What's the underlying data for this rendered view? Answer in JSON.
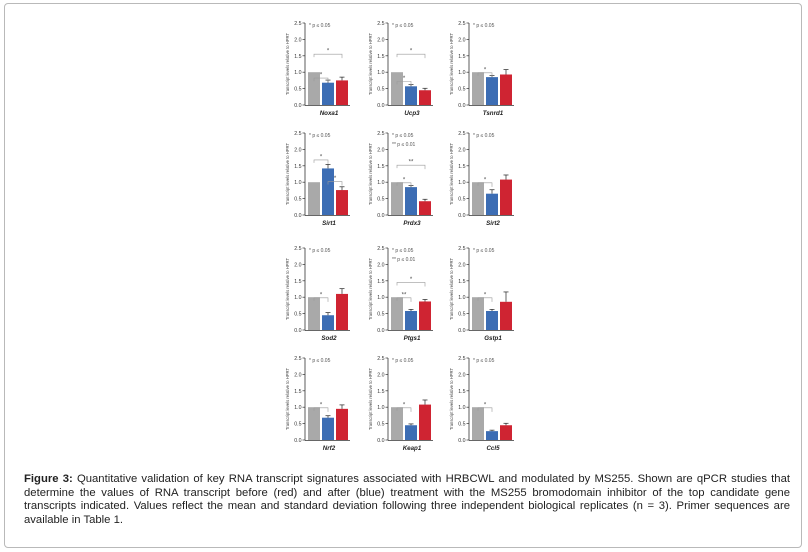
{
  "colors": {
    "grey": "#a9a9a9",
    "blue": "#3c6db4",
    "red": "#cf2432",
    "axis": "#333333",
    "sig": "#9a9a9a"
  },
  "y_tick_labels": [
    "0.0",
    "0.5",
    "1.0",
    "1.5",
    "2.0",
    "2.5"
  ],
  "ylabel": "Transcript levels relative to HPRT",
  "legend_text": {
    "p05": "* p ≤ 0.05",
    "p01": "** p ≤ 0.01"
  },
  "caption": {
    "label": "Figure 3:",
    "text": " Quantitative validation of key RNA transcript signatures associated with HRBCWL and modulated by MS255. Shown are qPCR studies that determine the values of RNA transcript before (red) and after (blue) treatment with the MS255 bromodomain inhibitor of the top candidate gene transcripts indicated. Values reflect the mean and standard deviation following three independent biological replicates (n = 3). Primer sequences are available in Table 1."
  },
  "chart_data": [
    {
      "type": "bar",
      "xlabel": "Noxa1",
      "ylim": [
        0,
        2.5
      ],
      "values": [
        1.0,
        0.68,
        0.75
      ],
      "errors": [
        0,
        0.08,
        0.1
      ],
      "legend": [
        "p05"
      ],
      "sig": [
        {
          "a": 0,
          "b": 1,
          "level": 0.82,
          "label": "*"
        },
        {
          "a": 0,
          "b": 2,
          "level": 1.55,
          "label": "*"
        }
      ]
    },
    {
      "type": "bar",
      "xlabel": "Ucp3",
      "ylim": [
        0,
        2.5
      ],
      "values": [
        1.0,
        0.57,
        0.45
      ],
      "errors": [
        0,
        0.05,
        0.06
      ],
      "legend": [
        "p05"
      ],
      "sig": [
        {
          "a": 0,
          "b": 1,
          "level": 0.72,
          "label": "*"
        },
        {
          "a": 0,
          "b": 2,
          "level": 1.55,
          "label": "*"
        }
      ]
    },
    {
      "type": "bar",
      "xlabel": "Tsnrd1",
      "ylim": [
        0,
        2.5
      ],
      "values": [
        1.0,
        0.85,
        0.93
      ],
      "errors": [
        0,
        0.05,
        0.15
      ],
      "legend": [
        "p05"
      ],
      "sig": [
        {
          "a": 0,
          "b": 1,
          "level": 0.98,
          "label": "*"
        }
      ]
    },
    {
      "type": "bar",
      "xlabel": "Sirt1",
      "ylim": [
        0,
        2.5
      ],
      "values": [
        1.0,
        1.42,
        0.76
      ],
      "errors": [
        0,
        0.12,
        0.1
      ],
      "legend": [
        "p05"
      ],
      "sig": [
        {
          "a": 0,
          "b": 1,
          "level": 1.68,
          "label": "*"
        },
        {
          "a": 1,
          "b": 2,
          "level": 1.02,
          "label": "*"
        }
      ]
    },
    {
      "type": "bar",
      "xlabel": "Prdx3",
      "ylim": [
        0,
        2.5
      ],
      "values": [
        1.0,
        0.85,
        0.42
      ],
      "errors": [
        0,
        0.05,
        0.06
      ],
      "legend": [
        "p05",
        "p01"
      ],
      "sig": [
        {
          "a": 0,
          "b": 1,
          "level": 0.98,
          "label": "*"
        },
        {
          "a": 0,
          "b": 2,
          "level": 1.52,
          "label": "**"
        }
      ]
    },
    {
      "type": "bar",
      "xlabel": "Sirt2",
      "ylim": [
        0,
        2.5
      ],
      "values": [
        1.0,
        0.65,
        1.08
      ],
      "errors": [
        0,
        0.12,
        0.14
      ],
      "legend": [
        "p05"
      ],
      "sig": [
        {
          "a": 0,
          "b": 1,
          "level": 0.98,
          "label": "*"
        }
      ]
    },
    {
      "type": "bar",
      "xlabel": "Sod2",
      "ylim": [
        0,
        2.5
      ],
      "values": [
        1.0,
        0.45,
        1.1
      ],
      "errors": [
        0,
        0.08,
        0.16
      ],
      "legend": [
        "p05"
      ],
      "sig": [
        {
          "a": 0,
          "b": 1,
          "level": 0.98,
          "label": "*"
        }
      ]
    },
    {
      "type": "bar",
      "xlabel": "Ptgs1",
      "ylim": [
        0,
        2.5
      ],
      "values": [
        1.0,
        0.58,
        0.87
      ],
      "errors": [
        0,
        0.05,
        0.06
      ],
      "legend": [
        "p05",
        "p01"
      ],
      "sig": [
        {
          "a": 0,
          "b": 1,
          "level": 0.98,
          "label": "**"
        },
        {
          "a": 0,
          "b": 2,
          "level": 1.45,
          "label": "*"
        }
      ]
    },
    {
      "type": "bar",
      "xlabel": "Gstp1",
      "ylim": [
        0,
        2.5
      ],
      "values": [
        1.0,
        0.58,
        0.86
      ],
      "errors": [
        0,
        0.05,
        0.3
      ],
      "legend": [
        "p05"
      ],
      "sig": [
        {
          "a": 0,
          "b": 1,
          "level": 0.98,
          "label": "*"
        }
      ]
    },
    {
      "type": "bar",
      "xlabel": "Nrf2",
      "ylim": [
        0,
        2.5
      ],
      "values": [
        1.0,
        0.68,
        0.95
      ],
      "errors": [
        0,
        0.06,
        0.12
      ],
      "legend": [
        "p05"
      ],
      "sig": [
        {
          "a": 0,
          "b": 1,
          "level": 0.98,
          "label": "*"
        }
      ]
    },
    {
      "type": "bar",
      "xlabel": "Keap1",
      "ylim": [
        0,
        2.5
      ],
      "values": [
        1.0,
        0.45,
        1.08
      ],
      "errors": [
        0,
        0.04,
        0.14
      ],
      "legend": [
        "p05"
      ],
      "sig": [
        {
          "a": 0,
          "b": 1,
          "level": 0.98,
          "label": "*"
        }
      ]
    },
    {
      "type": "bar",
      "xlabel": "Ccl5",
      "ylim": [
        0,
        2.5
      ],
      "values": [
        1.0,
        0.27,
        0.45
      ],
      "errors": [
        0,
        0.03,
        0.06
      ],
      "legend": [
        "p05"
      ],
      "sig": [
        {
          "a": 0,
          "b": 1,
          "level": 0.98,
          "label": "*"
        }
      ]
    }
  ]
}
